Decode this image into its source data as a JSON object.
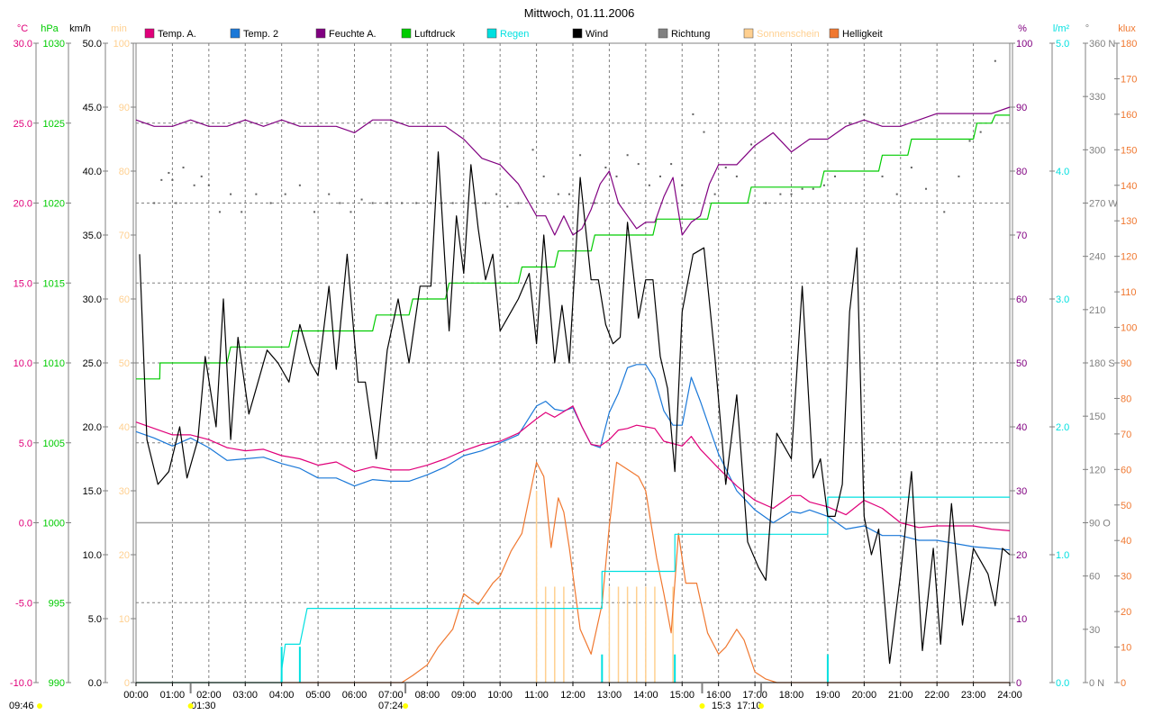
{
  "title": "Mittwoch, 01.11.2006",
  "legend": [
    {
      "label": "Temp. A.",
      "color": "#e0007a"
    },
    {
      "label": "Temp. 2",
      "color": "#1a78d8"
    },
    {
      "label": "Feuchte A.",
      "color": "#800080"
    },
    {
      "label": "Luftdruck",
      "color": "#00cc00"
    },
    {
      "label": "Regen",
      "color": "#00e0e0"
    },
    {
      "label": "Wind",
      "color": "#000000"
    },
    {
      "label": "Richtung",
      "color": "#808080"
    },
    {
      "label": "Sonnenschein",
      "color": "#ffd090"
    },
    {
      "label": "Helligkeit",
      "color": "#f07830"
    }
  ],
  "axes": {
    "temp": {
      "unit": "°C",
      "color": "#e0007a",
      "ticks": [
        "30.0",
        "25.0",
        "20.0",
        "15.0",
        "10.0",
        "5.0",
        "0.0",
        "-5.0",
        "-10.0"
      ]
    },
    "pressure": {
      "unit": "hPa",
      "color": "#00cc00",
      "ticks": [
        "1030",
        "1025",
        "1020",
        "1015",
        "1010",
        "1005",
        "1000",
        "995",
        "990"
      ]
    },
    "wind": {
      "unit": "km/h",
      "color": "#000000",
      "ticks": [
        "50.0",
        "45.0",
        "40.0",
        "35.0",
        "30.0",
        "25.0",
        "20.0",
        "15.0",
        "10.0",
        "5.0",
        "0.0"
      ]
    },
    "sun": {
      "unit": "min",
      "color": "#ffd090",
      "ticks": [
        "100",
        "90",
        "80",
        "70",
        "60",
        "50",
        "40",
        "30",
        "20",
        "10",
        "0"
      ]
    },
    "humidity": {
      "unit": "%",
      "color": "#800080",
      "ticks": [
        "100",
        "90",
        "80",
        "70",
        "60",
        "50",
        "40",
        "30",
        "20",
        "10",
        "0"
      ]
    },
    "rain": {
      "unit": "l/m²",
      "color": "#00e0e0",
      "ticks": [
        "5.0",
        "4.0",
        "3.0",
        "2.0",
        "1.0",
        "0.0"
      ]
    },
    "direction": {
      "unit": "°",
      "color": "#808080",
      "ticks": [
        "360 N",
        "330",
        "300",
        "270 W",
        "240",
        "210",
        "180 S",
        "150",
        "120",
        "90 O",
        "60",
        "30",
        "0 N"
      ]
    },
    "klux": {
      "unit": "klux",
      "color": "#f07830",
      "ticks": [
        "180",
        "170",
        "160",
        "150",
        "140",
        "130",
        "120",
        "110",
        "100",
        "90",
        "80",
        "70",
        "60",
        "50",
        "40",
        "30",
        "20",
        "10",
        "0"
      ]
    },
    "time": {
      "ticks": [
        "00:00",
        "01:00",
        "02:00",
        "03:00",
        "04:00",
        "05:00",
        "06:00",
        "07:00",
        "08:00",
        "09:00",
        "10:00",
        "11:00",
        "12:00",
        "13:00",
        "14:00",
        "15:00",
        "16:00",
        "17:00",
        "18:00",
        "19:00",
        "20:00",
        "21:00",
        "22:00",
        "23:00",
        "24:00"
      ]
    }
  },
  "bottom_labels": [
    "09:46",
    "01:30",
    "07:24",
    "15:3",
    "17:10"
  ],
  "colors": {
    "grid": "#808080",
    "axis": "#000000",
    "frame": "#808080"
  },
  "chart_data": {
    "type": "line",
    "title": "Mittwoch, 01.11.2006",
    "x_unit": "hours",
    "xlim": [
      0,
      24
    ],
    "series": [
      {
        "name": "Temp. A.",
        "axis": "temp",
        "ylim": [
          -10,
          30
        ],
        "x": [
          0,
          0.5,
          1,
          1.5,
          2,
          2.5,
          3,
          3.5,
          4,
          4.5,
          5,
          5.5,
          6,
          6.5,
          7,
          7.5,
          8,
          8.5,
          9,
          9.5,
          10,
          10.5,
          11,
          11.25,
          11.5,
          12,
          12.25,
          12.5,
          12.75,
          13,
          13.25,
          13.5,
          13.75,
          14,
          14.25,
          14.5,
          15,
          15.25,
          15.5,
          16,
          16.5,
          17,
          17.5,
          18,
          18.25,
          18.5,
          19,
          19.5,
          20,
          20.5,
          21,
          21.5,
          22,
          22.5,
          23,
          23.5,
          24
        ],
        "y": [
          6.3,
          5.9,
          5.5,
          5.5,
          5.2,
          4.7,
          4.5,
          4.6,
          4.2,
          4.0,
          3.6,
          3.8,
          3.2,
          3.5,
          3.3,
          3.3,
          3.6,
          4.0,
          4.5,
          4.9,
          5.1,
          5.6,
          6.5,
          6.9,
          6.6,
          7.3,
          6.0,
          4.9,
          4.8,
          5.2,
          5.8,
          5.9,
          6.1,
          6.0,
          5.9,
          5.1,
          4.8,
          5.4,
          4.6,
          3.4,
          2.3,
          1.4,
          0.9,
          1.7,
          1.7,
          1.3,
          1.0,
          0.5,
          1.4,
          0.9,
          0.0,
          -0.3,
          -0.2,
          -0.2,
          -0.2,
          -0.4,
          -0.5
        ]
      },
      {
        "name": "Temp. 2",
        "axis": "temp",
        "ylim": [
          -10,
          30
        ],
        "x": [
          0,
          0.5,
          1,
          1.5,
          2,
          2.5,
          3,
          3.5,
          4,
          4.5,
          5,
          5.5,
          6,
          6.5,
          7,
          7.5,
          8,
          8.5,
          9,
          9.5,
          10,
          10.5,
          11,
          11.25,
          11.5,
          11.75,
          12,
          12.25,
          12.5,
          12.75,
          13,
          13.25,
          13.5,
          13.75,
          14,
          14.25,
          14.5,
          14.75,
          15,
          15.25,
          15.5,
          16,
          16.5,
          17,
          17.5,
          18,
          18.25,
          18.5,
          19,
          19.5,
          20,
          20.5,
          21,
          21.5,
          22,
          22.5,
          23,
          23.5,
          24
        ],
        "y": [
          5.7,
          5.3,
          4.8,
          5.3,
          4.7,
          3.9,
          4.0,
          4.1,
          3.7,
          3.4,
          2.8,
          2.8,
          2.3,
          2.7,
          2.6,
          2.6,
          3.0,
          3.5,
          4.2,
          4.5,
          5.0,
          5.5,
          7.3,
          7.6,
          7.1,
          7.0,
          7.2,
          6.0,
          4.9,
          4.7,
          6.9,
          8.1,
          9.7,
          9.9,
          9.9,
          9.0,
          7.0,
          6.1,
          6.1,
          9.1,
          7.6,
          4.3,
          2.0,
          0.8,
          0.0,
          0.7,
          0.6,
          0.8,
          0.4,
          -0.4,
          -0.2,
          -0.8,
          -0.8,
          -1.1,
          -1.1,
          -1.3,
          -1.5,
          -1.6,
          -1.7
        ]
      },
      {
        "name": "Feuchte A.",
        "axis": "humidity",
        "ylim": [
          0,
          100
        ],
        "x": [
          0,
          0.5,
          1,
          1.5,
          2,
          2.5,
          3,
          3.5,
          4,
          4.5,
          5,
          5.5,
          6,
          6.5,
          7,
          7.5,
          8,
          8.5,
          9,
          9.5,
          10,
          10.5,
          11,
          11.25,
          11.5,
          11.75,
          12,
          12.25,
          12.5,
          12.75,
          13,
          13.25,
          13.5,
          13.75,
          14,
          14.25,
          14.5,
          14.75,
          15,
          15.25,
          15.5,
          15.75,
          16,
          16.5,
          17,
          17.5,
          18,
          18.25,
          18.5,
          19,
          19.5,
          20,
          20.5,
          21,
          21.5,
          22,
          22.5,
          23,
          23.5,
          24
        ],
        "y": [
          88,
          87,
          87,
          88,
          87,
          87,
          88,
          87,
          88,
          87,
          87,
          87,
          86,
          88,
          88,
          87,
          87,
          87,
          85,
          82,
          81,
          78,
          73,
          73,
          70,
          73,
          70,
          71,
          74,
          78,
          80,
          75,
          73,
          71,
          72,
          72,
          76,
          79,
          70,
          72,
          73,
          78,
          81,
          81,
          84,
          86,
          83,
          84,
          85,
          85,
          87,
          88,
          87,
          87,
          88,
          89,
          89,
          89,
          89,
          90
        ]
      },
      {
        "name": "Luftdruck",
        "axis": "pressure",
        "ylim": [
          990,
          1030
        ],
        "x": [
          0,
          0.65,
          0.66,
          1.5,
          2.5,
          2.6,
          4.2,
          4.3,
          6.5,
          6.6,
          7.5,
          7.6,
          8.5,
          8.6,
          10.5,
          10.6,
          11.5,
          11.6,
          12.5,
          12.6,
          14.2,
          14.3,
          15.7,
          15.8,
          16.8,
          16.9,
          18.8,
          18.9,
          20.4,
          20.5,
          21.2,
          21.3,
          23,
          23.1,
          23.5,
          23.6,
          24
        ],
        "y": [
          1009,
          1009,
          1010,
          1010,
          1010,
          1011,
          1011,
          1012,
          1012,
          1013,
          1013,
          1014,
          1014,
          1015,
          1015,
          1016,
          1016,
          1017,
          1017,
          1018,
          1018,
          1019,
          1019,
          1020,
          1020,
          1021,
          1021,
          1022,
          1022,
          1023,
          1023,
          1024,
          1024,
          1025,
          1025,
          1025.5,
          1025.5
        ]
      },
      {
        "name": "Wind",
        "axis": "wind",
        "ylim": [
          0,
          50
        ],
        "x": [
          0.1,
          0.3,
          0.6,
          0.9,
          1.2,
          1.4,
          1.7,
          1.9,
          2.2,
          2.4,
          2.6,
          2.8,
          3.1,
          3.3,
          3.6,
          3.9,
          4.2,
          4.5,
          4.8,
          5.0,
          5.3,
          5.5,
          5.8,
          6.1,
          6.3,
          6.6,
          6.9,
          7.2,
          7.5,
          7.8,
          8.1,
          8.3,
          8.6,
          8.8,
          9.0,
          9.2,
          9.4,
          9.6,
          9.8,
          10.0,
          10.2,
          10.5,
          10.8,
          11.0,
          11.2,
          11.5,
          11.7,
          11.9,
          12.2,
          12.5,
          12.7,
          12.9,
          13.1,
          13.3,
          13.5,
          13.8,
          14.0,
          14.2,
          14.4,
          14.6,
          14.8,
          15.0,
          15.3,
          15.6,
          15.9,
          16.2,
          16.5,
          16.8,
          17.1,
          17.3,
          17.6,
          18.0,
          18.3,
          18.6,
          18.8,
          19.0,
          19.2,
          19.4,
          19.6,
          19.8,
          20.0,
          20.2,
          20.4,
          20.7,
          21.0,
          21.3,
          21.6,
          21.9,
          22.1,
          22.4,
          22.7,
          23.0,
          23.2,
          23.4,
          23.6,
          23.8,
          24
        ],
        "y": [
          33.5,
          19,
          15.5,
          16.5,
          20,
          16,
          19,
          25.5,
          20,
          30,
          19,
          27,
          21,
          23,
          26,
          25,
          23.5,
          28,
          25,
          24,
          31,
          24.5,
          33.5,
          23.5,
          23.5,
          17.5,
          26,
          30,
          25,
          31,
          31,
          41.5,
          27.5,
          36.5,
          32,
          40.5,
          35.5,
          31.5,
          33.5,
          27.5,
          28.5,
          30,
          32,
          26.5,
          35,
          25,
          29.5,
          25,
          39.5,
          31.5,
          31.5,
          28,
          26.5,
          27,
          36,
          28.5,
          31.5,
          31.5,
          25.5,
          23,
          16.5,
          29,
          33.5,
          34,
          25.5,
          15.5,
          22.5,
          11,
          9,
          8,
          19.5,
          17.5,
          31,
          16,
          17.5,
          13,
          13,
          15.5,
          29,
          34,
          13,
          10,
          12,
          1.5,
          8.5,
          16.5,
          2.5,
          10.5,
          3,
          14,
          4.5,
          10.5,
          9.5,
          8.5,
          6,
          10.5,
          10
        ]
      },
      {
        "name": "Regen",
        "axis": "rain",
        "ylim": [
          0,
          5
        ],
        "x": [
          0,
          3.99,
          4.0,
          4.1,
          4.1,
          4.5,
          4.5,
          4.7,
          4.7,
          12.8,
          12.8,
          14.8,
          14.8,
          19.0,
          19.0,
          24
        ],
        "y": [
          0,
          0,
          0.1,
          0.3,
          0.3,
          0.3,
          0.3,
          0.58,
          0.58,
          0.58,
          0.87,
          0.87,
          1.16,
          1.16,
          1.45,
          1.45
        ]
      },
      {
        "name": "Helligkeit",
        "axis": "klux",
        "ylim": [
          0,
          180
        ],
        "x": [
          0,
          7.3,
          7.6,
          8.0,
          8.3,
          8.7,
          9.0,
          9.4,
          9.8,
          10.0,
          10.3,
          10.6,
          11.0,
          11.2,
          11.4,
          11.6,
          11.75,
          11.9,
          12.2,
          12.5,
          12.8,
          13.0,
          13.2,
          13.5,
          13.8,
          14.0,
          14.3,
          14.5,
          14.7,
          14.9,
          15.1,
          15.4,
          15.7,
          16.0,
          16.2,
          16.5,
          16.7,
          17.0,
          17.3,
          17.6,
          18.0,
          18.2,
          24
        ],
        "y": [
          0,
          0,
          2,
          5,
          10,
          15,
          25,
          22,
          28,
          30,
          37,
          42,
          62,
          58,
          38,
          52,
          48,
          38,
          15,
          8,
          22,
          44,
          62,
          60,
          58,
          54,
          35,
          25,
          14,
          42,
          28,
          28,
          14,
          8,
          10,
          15,
          12,
          3,
          1,
          0,
          0,
          0,
          0
        ]
      }
    ],
    "rain_bars": {
      "x": [
        4.0,
        4.5,
        12.8,
        14.8,
        19.0
      ],
      "y": [
        0.28,
        0.28,
        0.22,
        0.22,
        0.22
      ]
    },
    "sunshine_bars": {
      "x": [
        11.0,
        11.25,
        11.5,
        11.75,
        13.0,
        13.25,
        13.5,
        13.75,
        14.0,
        14.25,
        14.75
      ],
      "y": [
        30,
        15,
        15,
        15,
        15,
        15,
        15,
        15,
        15,
        15,
        15
      ]
    },
    "direction_points": {
      "x": [
        0.5,
        0.7,
        0.9,
        1.0,
        1.1,
        1.3,
        1.6,
        1.8,
        2.0,
        2.3,
        2.6,
        2.9,
        3.3,
        3.7,
        4.1,
        4.5,
        4.9,
        5.3,
        5.6,
        5.9,
        6.2,
        6.5,
        6.9,
        7.3,
        7.7,
        8.1,
        8.4,
        8.7,
        9.0,
        9.3,
        9.6,
        9.9,
        10.2,
        10.5,
        10.9,
        11.2,
        11.6,
        11.9,
        12.2,
        12.6,
        12.9,
        13.2,
        13.5,
        13.8,
        14.1,
        14.4,
        14.7,
        15.0,
        15.3,
        15.6,
        15.9,
        16.2,
        16.5,
        16.9,
        17.3,
        17.7,
        18.0,
        18.3,
        18.6,
        18.9,
        19.2,
        19.6,
        20.0,
        20.5,
        20.9,
        21.3,
        21.7,
        22.2,
        22.6,
        22.9,
        23.2,
        23.6
      ],
      "y": [
        270,
        283,
        287,
        283,
        270,
        290,
        280,
        285,
        280,
        265,
        275,
        265,
        275,
        270,
        275,
        280,
        265,
        275,
        270,
        265,
        272,
        270,
        270,
        270,
        270,
        270,
        270,
        270,
        270,
        270,
        270,
        275,
        268,
        270,
        300,
        285,
        275,
        275,
        297,
        270,
        290,
        285,
        297,
        292,
        280,
        285,
        292,
        280,
        320,
        310,
        275,
        290,
        285,
        303,
        270,
        275,
        275,
        278,
        278,
        280,
        285,
        315,
        320,
        285,
        275,
        290,
        278,
        265,
        285,
        305,
        310,
        350
      ]
    },
    "notes": "Luftdruck and Regen are step lines; Wind/Temp/Feuchte/Helligkeit are polylines"
  }
}
